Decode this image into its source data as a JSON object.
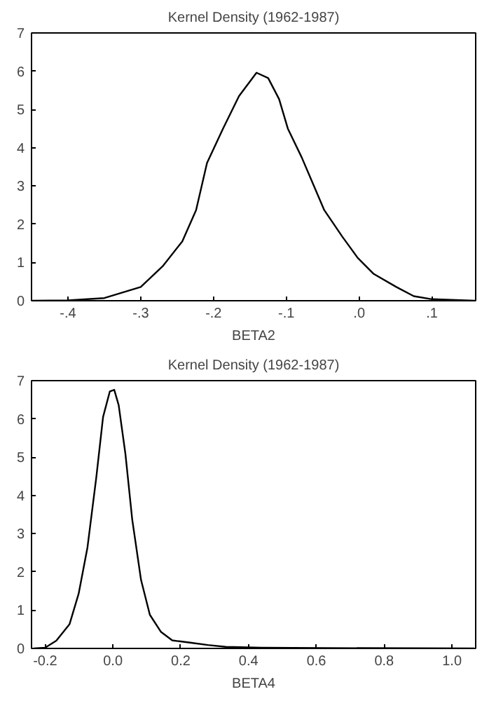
{
  "chart_data": [
    {
      "type": "line",
      "title": "Kernel Density (1962-1987)",
      "xlabel": "BETA2",
      "xlim": [
        -0.45,
        0.16
      ],
      "ylim": [
        0,
        7
      ],
      "xticks": [
        {
          "value": -0.4,
          "label": "-.4"
        },
        {
          "value": -0.3,
          "label": "-.3"
        },
        {
          "value": -0.2,
          "label": "-.2"
        },
        {
          "value": -0.1,
          "label": "-.1"
        },
        {
          "value": 0.0,
          "label": ".0"
        },
        {
          "value": 0.1,
          "label": ".1"
        }
      ],
      "yticks": [
        0,
        1,
        2,
        3,
        4,
        5,
        6,
        7
      ],
      "grid": false,
      "line_style": "solid",
      "series": [
        {
          "color": "#000000",
          "x": [
            -0.45,
            -0.4,
            -0.35,
            -0.3,
            -0.27,
            -0.243,
            -0.224,
            -0.209,
            -0.187,
            -0.165,
            -0.141,
            -0.125,
            -0.11,
            -0.098,
            -0.079,
            -0.048,
            -0.023,
            -0.002,
            0.02,
            0.051,
            0.075,
            0.1,
            0.159
          ],
          "values": [
            0,
            0.01,
            0.07,
            0.36,
            0.9,
            1.55,
            2.37,
            3.6,
            4.5,
            5.35,
            5.96,
            5.82,
            5.27,
            4.5,
            3.75,
            2.37,
            1.67,
            1.12,
            0.7,
            0.36,
            0.12,
            0.04,
            0
          ]
        }
      ]
    },
    {
      "type": "line",
      "title": "Kernel Density (1962-1987)",
      "xlabel": "BETA4",
      "xlim": [
        -0.24,
        1.07
      ],
      "ylim": [
        0,
        7
      ],
      "xticks": [
        {
          "value": -0.2,
          "label": "-0.2"
        },
        {
          "value": 0.0,
          "label": "0.0"
        },
        {
          "value": 0.2,
          "label": "0.2"
        },
        {
          "value": 0.4,
          "label": "0.4"
        },
        {
          "value": 0.6,
          "label": "0.6"
        },
        {
          "value": 0.8,
          "label": "0.8"
        },
        {
          "value": 1.0,
          "label": "1.0"
        }
      ],
      "yticks": [
        0,
        1,
        2,
        3,
        4,
        5,
        6,
        7
      ],
      "grid": false,
      "line_style": "solid",
      "series": [
        {
          "color": "#000000",
          "x": [
            -0.233,
            -0.2,
            -0.167,
            -0.128,
            -0.101,
            -0.075,
            -0.049,
            -0.029,
            -0.009,
            0.004,
            0.017,
            0.037,
            0.057,
            0.083,
            0.109,
            0.142,
            0.175,
            0.228,
            0.28,
            0.333,
            0.438,
            0.622,
            1.066
          ],
          "values": [
            0,
            0.02,
            0.2,
            0.63,
            1.43,
            2.64,
            4.47,
            6.05,
            6.72,
            6.76,
            6.36,
            5.08,
            3.37,
            1.79,
            0.88,
            0.43,
            0.21,
            0.15,
            0.09,
            0.04,
            0.02,
            0.01,
            0
          ]
        }
      ]
    }
  ]
}
